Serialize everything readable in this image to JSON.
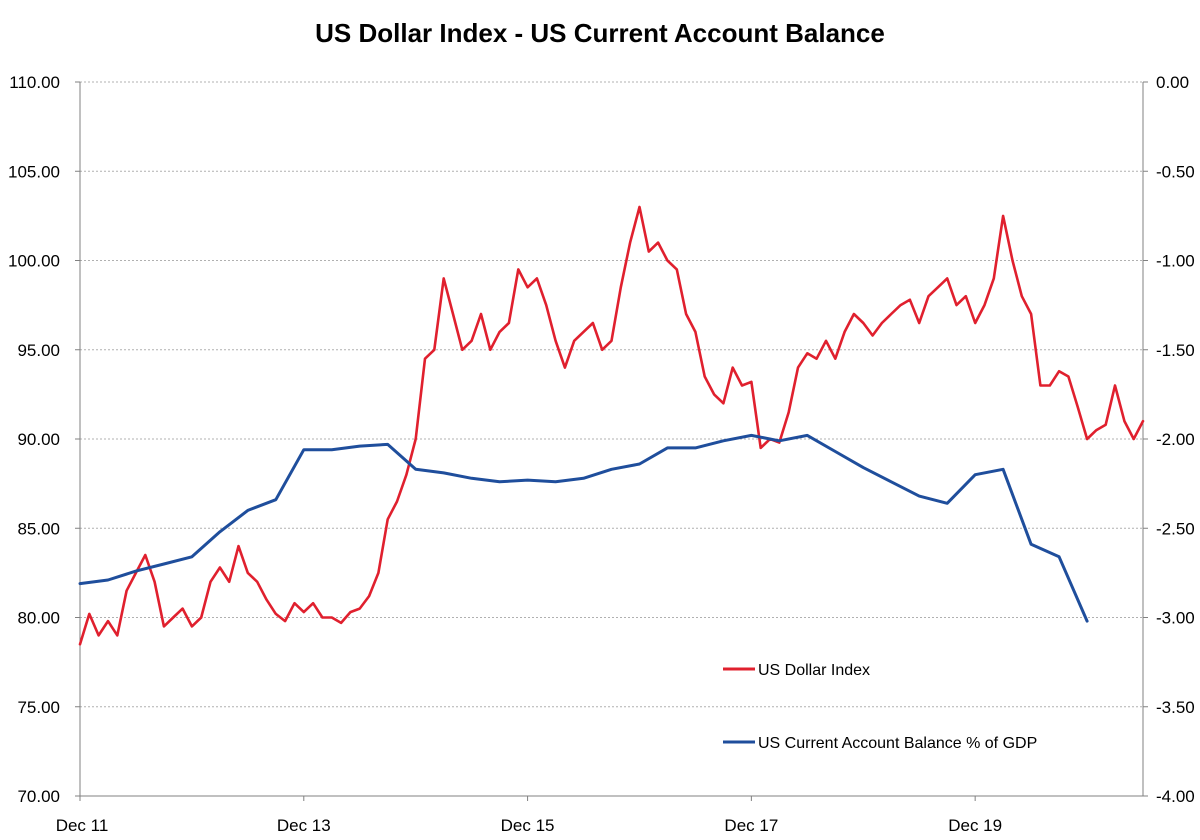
{
  "chart_data": {
    "type": "line",
    "title": "US Dollar Index - US Current Account Balance",
    "x_tick_labels": [
      "Dec 11",
      "Dec 13",
      "Dec 15",
      "Dec 17",
      "Dec 19"
    ],
    "y_left": {
      "ylim": [
        70,
        110
      ],
      "ticks": [
        "70.00",
        "75.00",
        "80.00",
        "85.00",
        "90.00",
        "95.00",
        "100.00",
        "105.00",
        "110.00"
      ]
    },
    "y_right": {
      "ylim": [
        -4,
        0
      ],
      "ticks": [
        "-4.00",
        "-3.50",
        "-3.00",
        "-2.50",
        "-2.00",
        "-1.50",
        "-1.00",
        "-0.50",
        "0.00"
      ]
    },
    "grid": true,
    "legend_position": "bottom-right",
    "colors": {
      "dollar": "#e0202e",
      "current_account": "#1f4e9c"
    },
    "series": [
      {
        "name": "US Dollar Index",
        "axis": "left",
        "points": [
          [
            "2011-12",
            78.5
          ],
          [
            "2012-01",
            80.2
          ],
          [
            "2012-02",
            79.0
          ],
          [
            "2012-03",
            79.8
          ],
          [
            "2012-04",
            79.0
          ],
          [
            "2012-05",
            81.5
          ],
          [
            "2012-06",
            82.5
          ],
          [
            "2012-07",
            83.5
          ],
          [
            "2012-08",
            82.0
          ],
          [
            "2012-09",
            79.5
          ],
          [
            "2012-10",
            80.0
          ],
          [
            "2012-11",
            80.5
          ],
          [
            "2012-12",
            79.5
          ],
          [
            "2013-01",
            80.0
          ],
          [
            "2013-02",
            82.0
          ],
          [
            "2013-03",
            82.8
          ],
          [
            "2013-04",
            82.0
          ],
          [
            "2013-05",
            84.0
          ],
          [
            "2013-06",
            82.5
          ],
          [
            "2013-07",
            82.0
          ],
          [
            "2013-08",
            81.0
          ],
          [
            "2013-09",
            80.2
          ],
          [
            "2013-10",
            79.8
          ],
          [
            "2013-11",
            80.8
          ],
          [
            "2013-12",
            80.3
          ],
          [
            "2014-01",
            80.8
          ],
          [
            "2014-02",
            80.0
          ],
          [
            "2014-03",
            80.0
          ],
          [
            "2014-04",
            79.7
          ],
          [
            "2014-05",
            80.3
          ],
          [
            "2014-06",
            80.5
          ],
          [
            "2014-07",
            81.2
          ],
          [
            "2014-08",
            82.5
          ],
          [
            "2014-09",
            85.5
          ],
          [
            "2014-10",
            86.5
          ],
          [
            "2014-11",
            88.0
          ],
          [
            "2014-12",
            90.0
          ],
          [
            "2015-01",
            94.5
          ],
          [
            "2015-02",
            95.0
          ],
          [
            "2015-03",
            99.0
          ],
          [
            "2015-04",
            97.0
          ],
          [
            "2015-05",
            95.0
          ],
          [
            "2015-06",
            95.5
          ],
          [
            "2015-07",
            97.0
          ],
          [
            "2015-08",
            95.0
          ],
          [
            "2015-09",
            96.0
          ],
          [
            "2015-10",
            96.5
          ],
          [
            "2015-11",
            99.5
          ],
          [
            "2015-12",
            98.5
          ],
          [
            "2016-01",
            99.0
          ],
          [
            "2016-02",
            97.5
          ],
          [
            "2016-03",
            95.5
          ],
          [
            "2016-04",
            94.0
          ],
          [
            "2016-05",
            95.5
          ],
          [
            "2016-06",
            96.0
          ],
          [
            "2016-07",
            96.5
          ],
          [
            "2016-08",
            95.0
          ],
          [
            "2016-09",
            95.5
          ],
          [
            "2016-10",
            98.5
          ],
          [
            "2016-11",
            101.0
          ],
          [
            "2016-12",
            103.0
          ],
          [
            "2017-01",
            100.5
          ],
          [
            "2017-02",
            101.0
          ],
          [
            "2017-03",
            100.0
          ],
          [
            "2017-04",
            99.5
          ],
          [
            "2017-05",
            97.0
          ],
          [
            "2017-06",
            96.0
          ],
          [
            "2017-07",
            93.5
          ],
          [
            "2017-08",
            92.5
          ],
          [
            "2017-09",
            92.0
          ],
          [
            "2017-10",
            94.0
          ],
          [
            "2017-11",
            93.0
          ],
          [
            "2017-12",
            93.2
          ],
          [
            "2018-01",
            89.5
          ],
          [
            "2018-02",
            90.0
          ],
          [
            "2018-03",
            89.8
          ],
          [
            "2018-04",
            91.5
          ],
          [
            "2018-05",
            94.0
          ],
          [
            "2018-06",
            94.8
          ],
          [
            "2018-07",
            94.5
          ],
          [
            "2018-08",
            95.5
          ],
          [
            "2018-09",
            94.5
          ],
          [
            "2018-10",
            96.0
          ],
          [
            "2018-11",
            97.0
          ],
          [
            "2018-12",
            96.5
          ],
          [
            "2019-01",
            95.8
          ],
          [
            "2019-02",
            96.5
          ],
          [
            "2019-03",
            97.0
          ],
          [
            "2019-04",
            97.5
          ],
          [
            "2019-05",
            97.8
          ],
          [
            "2019-06",
            96.5
          ],
          [
            "2019-07",
            98.0
          ],
          [
            "2019-08",
            98.5
          ],
          [
            "2019-09",
            99.0
          ],
          [
            "2019-10",
            97.5
          ],
          [
            "2019-11",
            98.0
          ],
          [
            "2019-12",
            96.5
          ],
          [
            "2020-01",
            97.5
          ],
          [
            "2020-02",
            99.0
          ],
          [
            "2020-03",
            102.5
          ],
          [
            "2020-04",
            100.0
          ],
          [
            "2020-05",
            98.0
          ],
          [
            "2020-06",
            97.0
          ],
          [
            "2020-07",
            93.0
          ],
          [
            "2020-08",
            93.0
          ],
          [
            "2020-09",
            93.8
          ],
          [
            "2020-10",
            93.5
          ],
          [
            "2020-11",
            91.8
          ],
          [
            "2020-12",
            90.0
          ],
          [
            "2021-01",
            90.5
          ],
          [
            "2021-02",
            90.8
          ],
          [
            "2021-03",
            93.0
          ],
          [
            "2021-04",
            91.0
          ],
          [
            "2021-05",
            90.0
          ],
          [
            "2021-06",
            91.0
          ]
        ]
      },
      {
        "name": "US Current Account Balance % of GDP",
        "axis": "right",
        "points": [
          [
            "2011-12",
            -2.81
          ],
          [
            "2012-03",
            -2.79
          ],
          [
            "2012-06",
            -2.74
          ],
          [
            "2012-09",
            -2.7
          ],
          [
            "2012-12",
            -2.66
          ],
          [
            "2013-03",
            -2.52
          ],
          [
            "2013-06",
            -2.4
          ],
          [
            "2013-09",
            -2.34
          ],
          [
            "2013-12",
            -2.06
          ],
          [
            "2014-03",
            -2.06
          ],
          [
            "2014-06",
            -2.04
          ],
          [
            "2014-09",
            -2.03
          ],
          [
            "2014-12",
            -2.17
          ],
          [
            "2015-03",
            -2.19
          ],
          [
            "2015-06",
            -2.22
          ],
          [
            "2015-09",
            -2.24
          ],
          [
            "2015-12",
            -2.23
          ],
          [
            "2016-03",
            -2.24
          ],
          [
            "2016-06",
            -2.22
          ],
          [
            "2016-09",
            -2.17
          ],
          [
            "2016-12",
            -2.14
          ],
          [
            "2017-03",
            -2.05
          ],
          [
            "2017-06",
            -2.05
          ],
          [
            "2017-09",
            -2.01
          ],
          [
            "2017-12",
            -1.98
          ],
          [
            "2018-03",
            -2.01
          ],
          [
            "2018-06",
            -1.98
          ],
          [
            "2018-09",
            -2.07
          ],
          [
            "2018-12",
            -2.16
          ],
          [
            "2019-03",
            -2.24
          ],
          [
            "2019-06",
            -2.32
          ],
          [
            "2019-09",
            -2.36
          ],
          [
            "2019-12",
            -2.2
          ],
          [
            "2020-03",
            -2.17
          ],
          [
            "2020-06",
            -2.59
          ],
          [
            "2020-09",
            -2.66
          ],
          [
            "2020-12",
            -3.02
          ]
        ]
      }
    ]
  }
}
